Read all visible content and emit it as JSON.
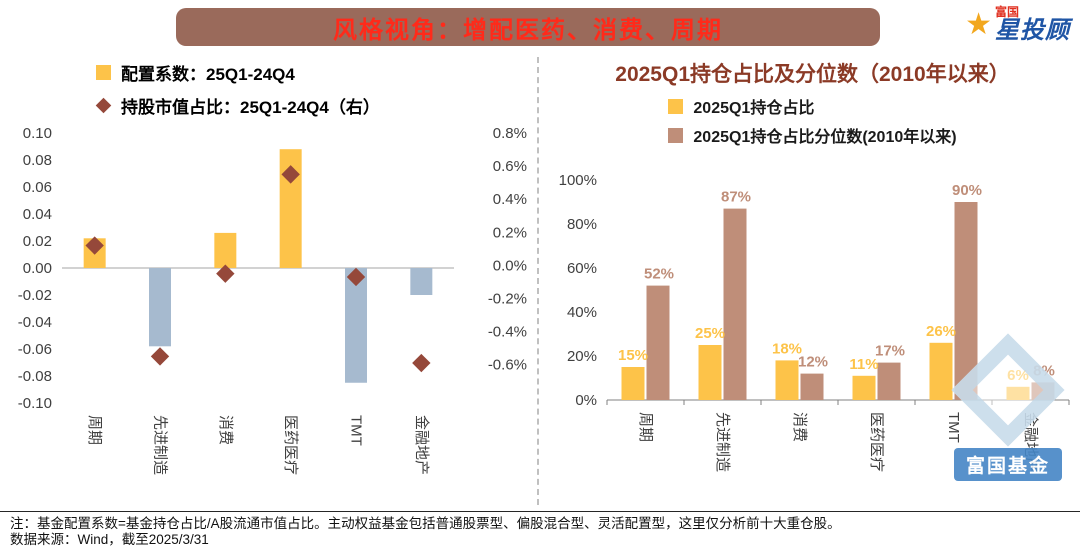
{
  "header": {
    "banner_title": "风格视角：增配医药、消费、周期",
    "logo": {
      "brand_small": "富国",
      "brand_main": "星投顾",
      "star_icon": "star"
    }
  },
  "chart_data": [
    {
      "type": "bar",
      "name": "style_allocation_chart",
      "categories": [
        "周期",
        "先进制造",
        "消费",
        "医药医疗",
        "TMT",
        "金融地产"
      ],
      "series": [
        {
          "name": "配置系数：25Q1-24Q4",
          "type": "bar",
          "axis": "left",
          "values": [
            0.022,
            -0.058,
            0.026,
            0.088,
            -0.085,
            -0.02
          ],
          "color_positive": "#FDC349",
          "color_negative": "#A6BACF"
        },
        {
          "name": "持股市值占比：25Q1-24Q4（右）",
          "type": "scatter",
          "marker": "diamond",
          "axis": "right",
          "unit": "%",
          "values": [
            0.12,
            -0.55,
            -0.05,
            0.55,
            -0.07,
            -0.59
          ],
          "color": "#95483A"
        }
      ],
      "left_axis": {
        "min": -0.1,
        "max": 0.1,
        "step": 0.02
      },
      "right_axis": {
        "min": -0.6,
        "max": 0.8,
        "step": 0.2,
        "unit": "%"
      },
      "legend_position": "top-left",
      "grid": false
    },
    {
      "type": "bar",
      "name": "holdings_percentile_chart",
      "title": "2025Q1持仓占比及分位数（2010年以来）",
      "categories": [
        "周期",
        "先进制造",
        "消费",
        "医药医疗",
        "TMT",
        "金融地产"
      ],
      "series": [
        {
          "name": "2025Q1持仓占比",
          "unit": "%",
          "values": [
            15,
            25,
            18,
            11,
            26,
            6
          ],
          "color": "#FDC349"
        },
        {
          "name": "2025Q1持仓占比分位数(2010年以来)",
          "unit": "%",
          "values": [
            52,
            87,
            12,
            17,
            90,
            8
          ],
          "color": "#BF8E79"
        }
      ],
      "y_axis": {
        "min": 0,
        "max": 100,
        "step": 20,
        "unit": "%"
      },
      "data_labels": true,
      "legend_position": "top",
      "grid": false
    }
  ],
  "footer": {
    "note": "注：基金配置系数=基金持仓占比/A股流通市值占比。主动权益基金包括普通股票型、偏股混合型、灵活配置型，这里仅分析前十大重仓股。",
    "source": "数据来源：Wind，截至2025/3/31"
  },
  "watermark": {
    "text": "富国基金"
  },
  "colors": {
    "banner_bg": "#9A6A5B",
    "banner_text": "#FF2A1A",
    "right_title": "#8B3A26",
    "axis_text": "#404040",
    "logo_blue": "#1F55A5",
    "logo_gold": "#F2A71E",
    "logo_red": "#E03020",
    "watermark_blue": "#4586C6",
    "watermark_light": "#C8DCEB",
    "divider": "#C0C0C0"
  }
}
